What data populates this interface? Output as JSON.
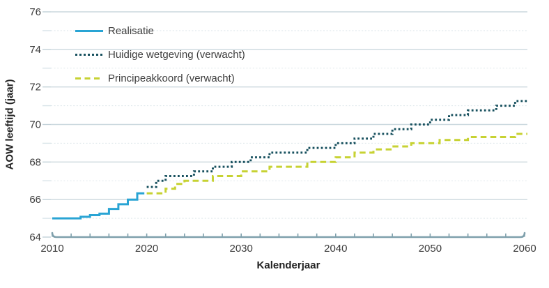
{
  "chart_data": {
    "type": "line",
    "title": "",
    "xlabel": "Kalenderjaar",
    "ylabel": "AOW leeftijd (jaar)",
    "xlim": [
      2010,
      2060
    ],
    "ylim": [
      64,
      76
    ],
    "x_ticks_major": [
      2010,
      2020,
      2030,
      2040,
      2050,
      2060
    ],
    "x_tick_minor_step": 2,
    "y_ticks_major": [
      64,
      66,
      68,
      70,
      72,
      74,
      76
    ],
    "y_ticks_minor": [
      65,
      67,
      69,
      71,
      73,
      75
    ],
    "grid": "horizontal-only",
    "legend_position": "top-left-inside",
    "colors": {
      "axis": "#7FA0AC",
      "grid_major": "#CBD8DE",
      "grid_minor": "#DFE8EC",
      "tick_label": "#3a3a3a"
    },
    "series": [
      {
        "name": "Realisatie",
        "style": "solid",
        "color": "#29A4D4",
        "step": true,
        "extend_years": 0.75,
        "x": [
          2010,
          2011,
          2012,
          2013,
          2014,
          2015,
          2016,
          2017,
          2018,
          2019
        ],
        "values": [
          65,
          65,
          65,
          65.08,
          65.17,
          65.25,
          65.5,
          65.75,
          66,
          66.33
        ]
      },
      {
        "name": "Huidige wetgeving (verwacht)",
        "style": "dotted",
        "color": "#18515F",
        "step": true,
        "extend_years": 0.35,
        "x": [
          2020,
          2021,
          2022,
          2023,
          2024,
          2025,
          2026,
          2027,
          2028,
          2029,
          2030,
          2031,
          2032,
          2033,
          2034,
          2035,
          2036,
          2037,
          2038,
          2039,
          2040,
          2041,
          2042,
          2043,
          2044,
          2045,
          2046,
          2047,
          2048,
          2049,
          2050,
          2051,
          2052,
          2053,
          2054,
          2055,
          2056,
          2057,
          2058,
          2059,
          2060
        ],
        "values": [
          66.67,
          67,
          67.25,
          67.25,
          67.25,
          67.5,
          67.5,
          67.75,
          67.75,
          68,
          68,
          68.25,
          68.25,
          68.5,
          68.5,
          68.5,
          68.5,
          68.75,
          68.75,
          68.75,
          69,
          69,
          69.25,
          69.25,
          69.5,
          69.5,
          69.75,
          69.75,
          70,
          70,
          70.25,
          70.25,
          70.5,
          70.5,
          70.75,
          70.75,
          70.75,
          71,
          71,
          71.25,
          71.25
        ]
      },
      {
        "name": "Principeakkoord (verwacht)",
        "style": "dashed",
        "color": "#C7D233",
        "step": true,
        "extend_years": 0.35,
        "x": [
          2020,
          2021,
          2022,
          2023,
          2024,
          2025,
          2026,
          2027,
          2028,
          2029,
          2030,
          2031,
          2032,
          2033,
          2034,
          2035,
          2036,
          2037,
          2038,
          2039,
          2040,
          2041,
          2042,
          2043,
          2044,
          2045,
          2046,
          2047,
          2048,
          2049,
          2050,
          2051,
          2052,
          2053,
          2054,
          2055,
          2056,
          2057,
          2058,
          2059,
          2060
        ],
        "values": [
          66.33,
          66.33,
          66.58,
          66.83,
          67,
          67,
          67,
          67.25,
          67.25,
          67.25,
          67.5,
          67.5,
          67.5,
          67.75,
          67.75,
          67.75,
          67.75,
          68,
          68,
          68,
          68.25,
          68.25,
          68.5,
          68.5,
          68.67,
          68.67,
          68.83,
          68.83,
          69,
          69,
          69,
          69.17,
          69.17,
          69.17,
          69.33,
          69.33,
          69.33,
          69.33,
          69.33,
          69.5,
          69.5
        ]
      }
    ]
  }
}
